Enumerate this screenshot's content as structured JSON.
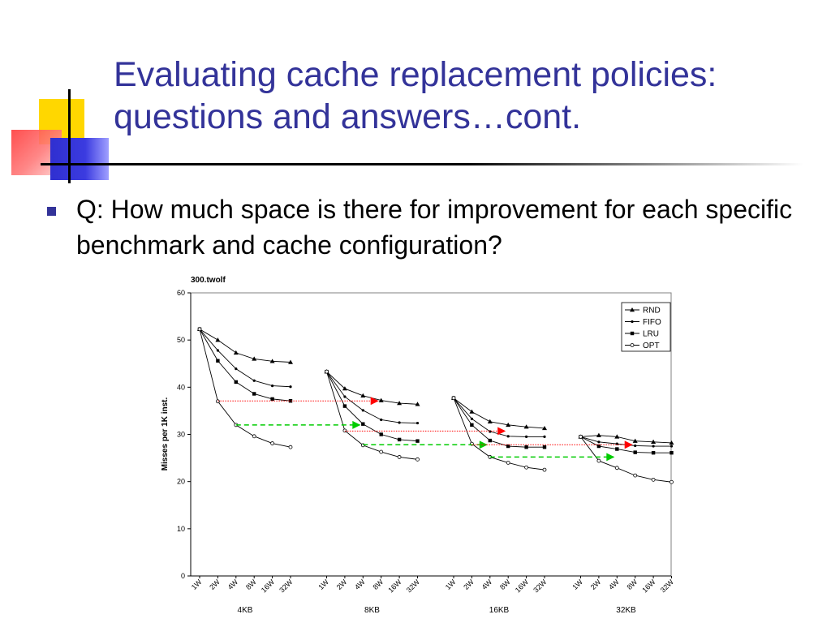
{
  "slide": {
    "title_line1": "Evaluating cache replacement policies:",
    "title_line2": "questions and answers…cont.",
    "bullet": "Q: How much space is there for improvement for each specific benchmark and cache configuration?"
  },
  "icons": {
    "bullet": "square-bullet-icon"
  },
  "colors": {
    "title": "#333399",
    "red_arrow": "#ff0000",
    "green_arrow": "#00cc00"
  },
  "chart_data": {
    "type": "line",
    "title": "300.twolf",
    "ylabel": "Misses per 1K inst.",
    "ylim": [
      0,
      60
    ],
    "yticks": [
      "0",
      "10",
      "20",
      "30",
      "40",
      "50",
      "60"
    ],
    "grid": false,
    "legend_position": "top-right",
    "groups": [
      {
        "name": "4KB",
        "ways": [
          "1W",
          "2W",
          "4W",
          "8W",
          "16W",
          "32W"
        ]
      },
      {
        "name": "8KB",
        "ways": [
          "1W",
          "2W",
          "4W",
          "8W",
          "16W",
          "32W"
        ]
      },
      {
        "name": "16KB",
        "ways": [
          "1W",
          "2W",
          "4W",
          "8W",
          "16W",
          "32W"
        ]
      },
      {
        "name": "32KB",
        "ways": [
          "1W",
          "2W",
          "4W",
          "8W",
          "16W",
          "32W"
        ]
      }
    ],
    "series": [
      {
        "name": "RND",
        "marker": "triangle",
        "values": [
          [
            52.3,
            50.0,
            47.3,
            46.0,
            45.5,
            45.3
          ],
          [
            43.3,
            39.7,
            38.2,
            37.2,
            36.6,
            36.4
          ],
          [
            37.7,
            34.8,
            32.7,
            32.0,
            31.6,
            31.3
          ],
          [
            29.5,
            29.8,
            29.5,
            28.6,
            28.4,
            28.2
          ]
        ]
      },
      {
        "name": "FIFO",
        "marker": "dot",
        "values": [
          [
            52.3,
            47.8,
            43.9,
            41.4,
            40.3,
            40.1
          ],
          [
            43.3,
            38.0,
            35.1,
            33.1,
            32.5,
            32.4
          ],
          [
            37.7,
            33.3,
            30.6,
            29.6,
            29.5,
            29.5
          ],
          [
            29.5,
            28.4,
            28.0,
            27.6,
            27.5,
            27.5
          ]
        ]
      },
      {
        "name": "LRU",
        "marker": "square",
        "values": [
          [
            52.3,
            45.6,
            41.1,
            38.6,
            37.5,
            37.1
          ],
          [
            43.3,
            36.0,
            32.2,
            30.0,
            28.9,
            28.6
          ],
          [
            37.7,
            32.0,
            28.7,
            27.5,
            27.3,
            27.3
          ],
          [
            29.5,
            27.5,
            26.9,
            26.2,
            26.1,
            26.1
          ]
        ]
      },
      {
        "name": "OPT",
        "marker": "circle",
        "values": [
          [
            52.3,
            37.0,
            32.0,
            29.6,
            28.1,
            27.3
          ],
          [
            43.3,
            30.8,
            27.7,
            26.3,
            25.2,
            24.7
          ],
          [
            37.7,
            28.0,
            25.2,
            24.0,
            23.0,
            22.5
          ],
          [
            29.5,
            24.4,
            22.9,
            21.3,
            20.4,
            19.9
          ]
        ]
      }
    ],
    "annotations": [
      {
        "type": "red-dotted-arrow",
        "y": 37.1,
        "from": [
          0,
          1
        ],
        "to": [
          1,
          3
        ]
      },
      {
        "type": "green-dashed-arrow",
        "y": 32.0,
        "from": [
          0,
          2
        ],
        "to": [
          1,
          2
        ]
      },
      {
        "type": "red-dotted-arrow",
        "y": 30.7,
        "from": [
          1,
          1
        ],
        "to": [
          2,
          3
        ]
      },
      {
        "type": "green-dashed-arrow",
        "y": 27.8,
        "from": [
          1,
          2
        ],
        "to": [
          2,
          2
        ]
      },
      {
        "type": "red-dotted-arrow",
        "y": 27.8,
        "from": [
          2,
          1
        ],
        "to": [
          3,
          3
        ]
      },
      {
        "type": "green-dashed-arrow",
        "y": 25.2,
        "from": [
          2,
          2
        ],
        "to": [
          3,
          2
        ]
      }
    ]
  }
}
